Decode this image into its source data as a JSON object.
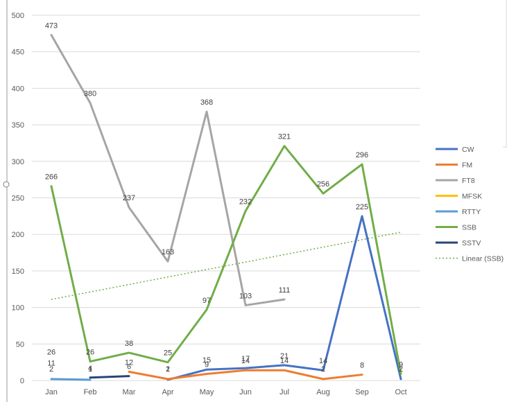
{
  "chart_data": {
    "type": "line",
    "categories": [
      "Jan",
      "Feb",
      "Mar",
      "Apr",
      "May",
      "Jun",
      "Jul",
      "Aug",
      "Sep",
      "Oct"
    ],
    "ylim": [
      0,
      500
    ],
    "yticks": [
      0,
      50,
      100,
      150,
      200,
      250,
      300,
      350,
      400,
      450,
      500
    ],
    "grid": true,
    "legend_position": "right",
    "series": [
      {
        "name": "CW",
        "color": "#4472C4",
        "values": [
          null,
          null,
          null,
          1,
          15,
          17,
          21,
          14,
          225,
          2
        ]
      },
      {
        "name": "FM",
        "color": "#ED7D31",
        "values": [
          null,
          null,
          12,
          2,
          9,
          14,
          14,
          2,
          8,
          null
        ]
      },
      {
        "name": "FT8",
        "color": "#A5A5A5",
        "values": [
          473,
          380,
          237,
          163,
          368,
          103,
          111,
          null,
          null,
          null
        ]
      },
      {
        "name": "MFSK",
        "color": "#FFC000",
        "values": [
          null,
          null,
          null,
          null,
          null,
          null,
          null,
          null,
          null,
          null
        ]
      },
      {
        "name": "RTTY",
        "color": "#5B9BD5",
        "values": [
          2,
          1,
          null,
          null,
          null,
          null,
          null,
          null,
          null,
          null
        ]
      },
      {
        "name": "SSB",
        "color": "#70AD47",
        "values": [
          266,
          26,
          38,
          25,
          97,
          232,
          321,
          256,
          296,
          9
        ]
      },
      {
        "name": "SSTV",
        "color": "#264478",
        "values": [
          null,
          4,
          6,
          null,
          null,
          null,
          null,
          null,
          null,
          null
        ]
      }
    ],
    "extra_labels": [
      {
        "x": "Jan",
        "y": 26,
        "text": "26"
      },
      {
        "x": "Jan",
        "y": 11,
        "text": "11"
      }
    ],
    "trendline": {
      "name": "Linear (SSB)",
      "color": "#70AD47",
      "start": 111,
      "end": 203
    }
  }
}
